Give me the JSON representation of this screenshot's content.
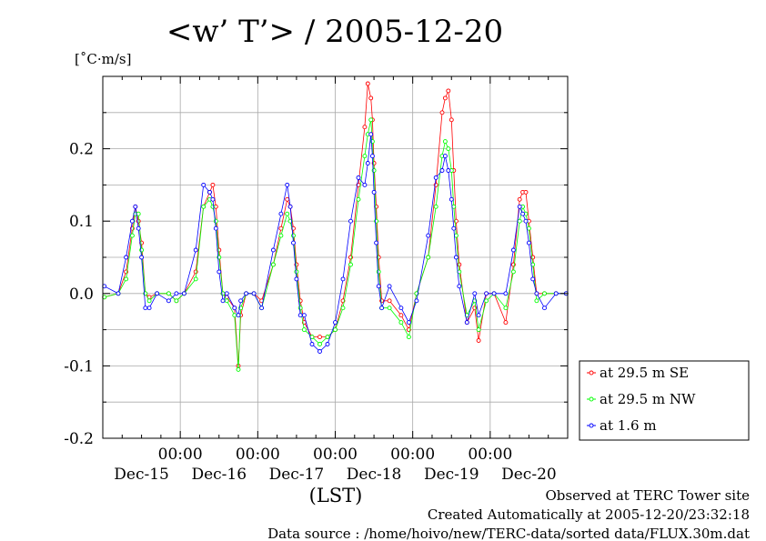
{
  "chart_data": {
    "type": "line",
    "title": "<w’ T’> / 2005-12-20",
    "ylabel": "[˚C·m/s]",
    "xlabel": "(LST)",
    "ylim": [
      -0.2,
      0.3
    ],
    "xlim": [
      0,
      6
    ],
    "x_unit": "days since Dec-15 00:00 (LST)",
    "yticks": [
      "0.2",
      "0.1",
      "0.0",
      "-0.1",
      "-0.2"
    ],
    "ytick_values": [
      0.2,
      0.1,
      0.0,
      -0.1,
      -0.2
    ],
    "xticks_time": [
      "00:00",
      "00:00",
      "00:00",
      "00:00",
      "00:00"
    ],
    "xticks_time_values": [
      1,
      2,
      3,
      4,
      5
    ],
    "xticks_day": [
      "Dec-15",
      "Dec-16",
      "Dec-17",
      "Dec-18",
      "Dec-19",
      "Dec-20"
    ],
    "xticks_day_values": [
      0.5,
      1.5,
      2.5,
      3.5,
      4.5,
      5.5
    ],
    "grid": true,
    "legend_position": "lower-right outside",
    "series": [
      {
        "name": "at 29.5 m SE",
        "color": "#ff0000",
        "x": [
          0.02,
          0.2,
          0.3,
          0.38,
          0.42,
          0.46,
          0.5,
          0.55,
          0.6,
          0.7,
          0.85,
          0.95,
          1.05,
          1.2,
          1.3,
          1.38,
          1.42,
          1.46,
          1.5,
          1.55,
          1.6,
          1.7,
          1.75,
          1.78,
          1.85,
          1.95,
          2.05,
          2.2,
          2.3,
          2.38,
          2.42,
          2.46,
          2.5,
          2.55,
          2.6,
          2.7,
          2.8,
          2.9,
          3.0,
          3.1,
          3.2,
          3.3,
          3.38,
          3.42,
          3.46,
          3.48,
          3.5,
          3.53,
          3.56,
          3.6,
          3.7,
          3.85,
          3.95,
          4.05,
          4.2,
          4.3,
          4.38,
          4.42,
          4.46,
          4.5,
          4.53,
          4.56,
          4.6,
          4.7,
          4.8,
          4.85,
          4.95,
          5.05,
          5.2,
          5.3,
          5.38,
          5.42,
          5.46,
          5.5,
          5.55,
          5.6,
          5.7,
          5.85,
          5.98
        ],
        "y": [
          -0.005,
          0.0,
          0.03,
          0.09,
          0.12,
          0.1,
          0.07,
          0.0,
          -0.005,
          0.0,
          0.0,
          -0.01,
          0.0,
          0.03,
          0.12,
          0.14,
          0.15,
          0.12,
          0.06,
          0.0,
          -0.005,
          -0.02,
          -0.1,
          -0.03,
          0.0,
          0.0,
          -0.01,
          0.04,
          0.09,
          0.13,
          0.12,
          0.09,
          0.04,
          -0.01,
          -0.04,
          -0.06,
          -0.06,
          -0.06,
          -0.05,
          -0.01,
          0.05,
          0.15,
          0.23,
          0.29,
          0.27,
          0.24,
          0.18,
          0.12,
          0.05,
          -0.01,
          -0.01,
          -0.03,
          -0.05,
          0.0,
          0.05,
          0.15,
          0.25,
          0.27,
          0.28,
          0.24,
          0.17,
          0.1,
          0.04,
          -0.04,
          -0.02,
          -0.065,
          0.0,
          0.0,
          -0.04,
          0.04,
          0.13,
          0.14,
          0.14,
          0.1,
          0.05,
          0.0,
          0.0,
          0.0,
          0.0
        ]
      },
      {
        "name": "at 29.5 m NW",
        "color": "#00ff00",
        "x": [
          0.02,
          0.2,
          0.3,
          0.38,
          0.42,
          0.46,
          0.5,
          0.55,
          0.6,
          0.7,
          0.85,
          0.95,
          1.05,
          1.2,
          1.3,
          1.38,
          1.42,
          1.46,
          1.5,
          1.55,
          1.6,
          1.7,
          1.75,
          1.78,
          1.85,
          1.95,
          2.05,
          2.2,
          2.3,
          2.38,
          2.42,
          2.46,
          2.5,
          2.55,
          2.6,
          2.7,
          2.8,
          2.9,
          3.0,
          3.1,
          3.2,
          3.3,
          3.38,
          3.42,
          3.46,
          3.48,
          3.5,
          3.53,
          3.56,
          3.6,
          3.7,
          3.85,
          3.95,
          4.05,
          4.2,
          4.3,
          4.38,
          4.42,
          4.46,
          4.5,
          4.53,
          4.56,
          4.6,
          4.7,
          4.8,
          4.85,
          4.95,
          5.05,
          5.2,
          5.3,
          5.38,
          5.42,
          5.46,
          5.5,
          5.55,
          5.6,
          5.7,
          5.85,
          5.98
        ],
        "y": [
          -0.005,
          0.0,
          0.02,
          0.08,
          0.11,
          0.11,
          0.06,
          0.0,
          -0.01,
          0.0,
          0.0,
          -0.01,
          0.0,
          0.02,
          0.12,
          0.13,
          0.12,
          0.1,
          0.05,
          0.0,
          -0.01,
          -0.03,
          -0.105,
          -0.02,
          0.0,
          0.0,
          -0.02,
          0.04,
          0.08,
          0.11,
          0.1,
          0.08,
          0.03,
          -0.02,
          -0.05,
          -0.06,
          -0.07,
          -0.06,
          -0.05,
          -0.02,
          0.04,
          0.13,
          0.19,
          0.22,
          0.24,
          0.21,
          0.17,
          0.1,
          0.03,
          -0.02,
          -0.02,
          -0.04,
          -0.06,
          0.0,
          0.05,
          0.12,
          0.19,
          0.21,
          0.2,
          0.17,
          0.12,
          0.08,
          0.03,
          -0.03,
          -0.01,
          -0.05,
          -0.01,
          0.0,
          -0.02,
          0.03,
          0.1,
          0.12,
          0.11,
          0.09,
          0.04,
          -0.01,
          0.0,
          0.0,
          0.0
        ]
      },
      {
        "name": "at 1.6 m",
        "color": "#0000ff",
        "x": [
          0.02,
          0.2,
          0.3,
          0.38,
          0.42,
          0.46,
          0.5,
          0.55,
          0.6,
          0.7,
          0.85,
          0.95,
          1.05,
          1.2,
          1.3,
          1.38,
          1.42,
          1.46,
          1.5,
          1.55,
          1.6,
          1.7,
          1.75,
          1.78,
          1.85,
          1.95,
          2.05,
          2.2,
          2.3,
          2.38,
          2.42,
          2.46,
          2.5,
          2.55,
          2.6,
          2.7,
          2.8,
          2.9,
          3.0,
          3.1,
          3.2,
          3.3,
          3.38,
          3.42,
          3.46,
          3.48,
          3.5,
          3.53,
          3.56,
          3.6,
          3.7,
          3.85,
          3.95,
          4.05,
          4.2,
          4.3,
          4.38,
          4.42,
          4.46,
          4.5,
          4.53,
          4.56,
          4.6,
          4.7,
          4.8,
          4.85,
          4.95,
          5.05,
          5.2,
          5.3,
          5.38,
          5.42,
          5.46,
          5.5,
          5.55,
          5.6,
          5.7,
          5.85,
          5.98
        ],
        "y": [
          0.01,
          0.0,
          0.05,
          0.1,
          0.12,
          0.09,
          0.05,
          -0.02,
          -0.02,
          0.0,
          -0.01,
          0.0,
          0.0,
          0.06,
          0.15,
          0.14,
          0.13,
          0.09,
          0.03,
          -0.01,
          0.0,
          -0.02,
          -0.03,
          -0.01,
          0.0,
          0.0,
          -0.02,
          0.06,
          0.11,
          0.15,
          0.12,
          0.07,
          0.02,
          -0.03,
          -0.03,
          -0.07,
          -0.08,
          -0.07,
          -0.04,
          0.02,
          0.1,
          0.16,
          0.15,
          0.18,
          0.22,
          0.19,
          0.14,
          0.07,
          0.01,
          -0.02,
          0.01,
          -0.02,
          -0.04,
          -0.01,
          0.08,
          0.16,
          0.17,
          0.19,
          0.17,
          0.13,
          0.09,
          0.05,
          0.01,
          -0.04,
          0.0,
          -0.03,
          0.0,
          0.0,
          0.0,
          0.06,
          0.12,
          0.11,
          0.1,
          0.07,
          0.02,
          0.0,
          -0.02,
          0.0,
          0.0
        ]
      }
    ]
  },
  "footer": {
    "line1": "Observed at TERC Tower site",
    "line2": "Created Automatically at 2005-12-20/23:32:18",
    "line3": "Data source : /home/hoivo/new/TERC-data/sorted  data/FLUX.30m.dat"
  }
}
